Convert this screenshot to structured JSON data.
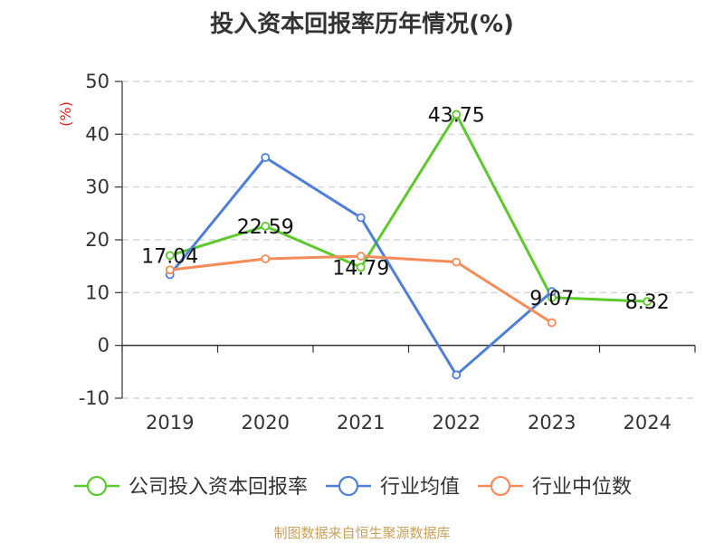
{
  "chart_data": {
    "type": "line",
    "title": "投入资本回报率历年情况(%)",
    "ylabel": "(%)",
    "ylabel_color": "#e02020",
    "categories": [
      "2019",
      "2020",
      "2021",
      "2022",
      "2023",
      "2024"
    ],
    "ylim": [
      -10,
      50
    ],
    "yticks": [
      -10,
      0,
      10,
      20,
      30,
      40,
      50
    ],
    "grid": "horizontal-dashed",
    "legend_position": "bottom",
    "series": [
      {
        "name": "公司投入资本回报率",
        "color": "#5cc92c",
        "values": [
          17.04,
          22.59,
          14.79,
          43.75,
          9.07,
          8.32
        ],
        "labels": [
          "17.04",
          "22.59",
          "14.79",
          "43.75",
          "9.07",
          "8.32"
        ]
      },
      {
        "name": "行业均值",
        "color": "#4f7fd8",
        "values": [
          13.4,
          35.6,
          24.2,
          -5.6,
          10.2,
          null
        ]
      },
      {
        "name": "行业中位数",
        "color": "#f58c5a",
        "values": [
          14.3,
          16.4,
          16.9,
          15.8,
          4.3,
          null
        ]
      }
    ]
  },
  "source_note": "制图数据来自恒生聚源数据库"
}
